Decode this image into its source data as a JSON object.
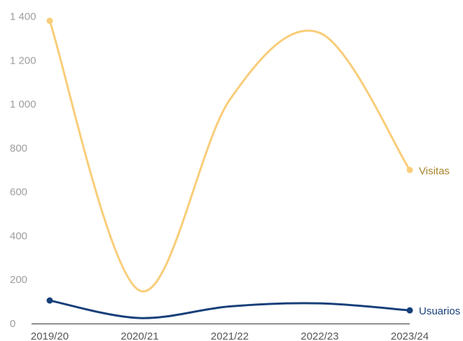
{
  "chart_data": {
    "type": "line",
    "categories": [
      "2019/20",
      "2020/21",
      "2021/22",
      "2022/23",
      "2023/24"
    ],
    "y_tick_labels": [
      "0",
      "200",
      "400",
      "600",
      "800",
      "1 000",
      "1 200",
      "1 400"
    ],
    "ylim": [
      0,
      1400
    ],
    "grid": false,
    "smooth": true,
    "series": [
      {
        "name": "Visitas",
        "color": "#f9cd79",
        "label_color": "#a8832a",
        "values": [
          1380,
          150,
          1020,
          1325,
          700
        ]
      },
      {
        "name": "Usuarios",
        "color": "#173f79",
        "label_color": "#173f79",
        "values": [
          105,
          25,
          78,
          92,
          60
        ]
      }
    ]
  }
}
